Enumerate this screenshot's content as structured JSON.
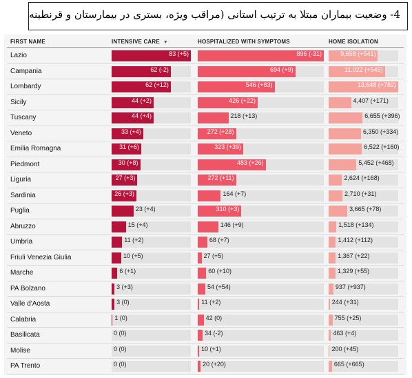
{
  "title": "4- وضعیت بیماران مبتلا به ترتیب استانی (مراقب ویژه، بستری در بیمارستان و قرنطینه",
  "columns": {
    "name": "FIRST NAME",
    "icu": "INTENSIVE CARE",
    "icu_sort_icon": "▼",
    "hosp": "HOSPITALIZED WITH SYMPTOMS",
    "home": "HOME ISOLATION"
  },
  "colors": {
    "icu": "#b5133a",
    "hosp": "#ee5668",
    "home": "#f5a19c",
    "track": "#e3e3e3"
  },
  "chart_data": {
    "type": "table",
    "regions": [
      "Lazio",
      "Campania",
      "Lombardy",
      "Sicily",
      "Tuscany",
      "Veneto",
      "Emilia Romagna",
      "Piedmont",
      "Liguria",
      "Sardinia",
      "Puglia",
      "Abruzzo",
      "Umbria",
      "Friuli Venezia Giulia",
      "Marche",
      "PA Bolzano",
      "Valle d'Aosta",
      "Calabria",
      "Basilicata",
      "Molise",
      "PA Trento"
    ],
    "series": [
      {
        "name": "INTENSIVE CARE",
        "values": [
          83,
          62,
          62,
          44,
          44,
          33,
          31,
          30,
          27,
          26,
          23,
          15,
          11,
          10,
          6,
          3,
          3,
          1,
          0,
          0,
          0
        ],
        "labels": [
          "83 (+5)",
          "62 (-2)",
          "62 (+12)",
          "44 (+2)",
          "44 (+4)",
          "33 (+4)",
          "31 (+6)",
          "30 (+8)",
          "27 (+3)",
          "26 (+3)",
          "23 (+4)",
          "15 (+4)",
          "11 (+2)",
          "10 (+5)",
          "6 (+1)",
          "3 (+3)",
          "3 (0)",
          "1 (0)",
          "0 (0)",
          "0 (0)",
          "0 (0)"
        ],
        "max": 83
      },
      {
        "name": "HOSPITALIZED WITH SYMPTOMS",
        "values": [
          896,
          694,
          546,
          426,
          218,
          272,
          323,
          483,
          272,
          164,
          310,
          146,
          68,
          27,
          60,
          54,
          11,
          42,
          34,
          10,
          20
        ],
        "labels": [
          "896 (-31)",
          "694 (+9)",
          "546 (+83)",
          "426 (+22)",
          "218 (+13)",
          "272 (+28)",
          "323 (+39)",
          "483 (+26)",
          "272 (+11)",
          "164 (+7)",
          "310 (+3)",
          "146 (+9)",
          "68 (+7)",
          "27 (+5)",
          "60 (+10)",
          "54 (+54)",
          "11 (+2)",
          "42 (0)",
          "34 (-2)",
          "10 (+1)",
          "20 (+20)"
        ],
        "max": 896
      },
      {
        "name": "HOME ISOLATION",
        "values": [
          9658,
          11022,
          13648,
          4407,
          6655,
          6350,
          6522,
          5452,
          2624,
          2710,
          3665,
          1518,
          1412,
          1367,
          1329,
          937,
          244,
          755,
          463,
          200,
          665
        ],
        "labels": [
          "9,658 (+541)",
          "11,022 (+545)",
          "13,648 (+782)",
          "4,407 (+171)",
          "6,655 (+396)",
          "6,350 (+334)",
          "6,522 (+160)",
          "5,452 (+468)",
          "2,624 (+168)",
          "2,710 (+31)",
          "3,665 (+78)",
          "1,518 (+134)",
          "1,412 (+112)",
          "1,367 (+22)",
          "1,329 (+55)",
          "937 (+937)",
          "244 (+31)",
          "755 (+25)",
          "463 (+4)",
          "200 (+45)",
          "665 (+665)"
        ],
        "max": 13648
      }
    ]
  }
}
